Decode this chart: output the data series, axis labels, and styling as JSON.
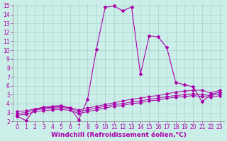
{
  "xlabel": "Windchill (Refroidissement éolien,°C)",
  "xlim": [
    -0.5,
    23.5
  ],
  "ylim": [
    2,
    15.2
  ],
  "xticks": [
    0,
    1,
    2,
    3,
    4,
    5,
    6,
    7,
    8,
    9,
    10,
    11,
    12,
    13,
    14,
    15,
    16,
    17,
    18,
    19,
    20,
    21,
    22,
    23
  ],
  "yticks": [
    2,
    3,
    4,
    5,
    6,
    7,
    8,
    9,
    10,
    11,
    12,
    13,
    14,
    15
  ],
  "bg_color": "#cceee8",
  "grid_color": "#aad8d0",
  "line_color": "#aa00aa",
  "series1_x": [
    0,
    1,
    2,
    3,
    4,
    5,
    6,
    7,
    8,
    9,
    10,
    11,
    12,
    13,
    14,
    15,
    16,
    17,
    18,
    19,
    20,
    21,
    22,
    23
  ],
  "series1_y": [
    2.6,
    2.1,
    3.4,
    3.6,
    3.7,
    3.8,
    3.5,
    2.2,
    4.5,
    10.1,
    14.8,
    14.95,
    14.4,
    14.85,
    7.3,
    11.6,
    11.5,
    10.3,
    6.4,
    6.1,
    5.9,
    4.2,
    5.0,
    5.3
  ],
  "series2_x": [
    0,
    1,
    2,
    3,
    4,
    5,
    6,
    7,
    8,
    9,
    10,
    11,
    12,
    13,
    14,
    15,
    16,
    17,
    18,
    19,
    20,
    21,
    22,
    23
  ],
  "series2_y": [
    3.1,
    3.2,
    3.4,
    3.5,
    3.6,
    3.65,
    3.55,
    3.3,
    3.5,
    3.7,
    3.9,
    4.1,
    4.3,
    4.5,
    4.6,
    4.8,
    4.9,
    5.1,
    5.3,
    5.4,
    5.5,
    5.5,
    5.2,
    5.5
  ],
  "series3_x": [
    0,
    1,
    2,
    3,
    4,
    5,
    6,
    7,
    8,
    9,
    10,
    11,
    12,
    13,
    14,
    15,
    16,
    17,
    18,
    19,
    20,
    21,
    22,
    23
  ],
  "series3_y": [
    2.9,
    3.0,
    3.3,
    3.4,
    3.5,
    3.55,
    3.45,
    3.1,
    3.3,
    3.5,
    3.7,
    3.9,
    4.0,
    4.2,
    4.3,
    4.5,
    4.6,
    4.8,
    4.9,
    5.0,
    5.1,
    5.0,
    4.9,
    5.1
  ],
  "series4_x": [
    0,
    1,
    2,
    3,
    4,
    5,
    6,
    7,
    8,
    9,
    10,
    11,
    12,
    13,
    14,
    15,
    16,
    17,
    18,
    19,
    20,
    21,
    22,
    23
  ],
  "series4_y": [
    2.7,
    2.8,
    3.1,
    3.2,
    3.3,
    3.35,
    3.25,
    2.9,
    3.1,
    3.3,
    3.5,
    3.7,
    3.8,
    4.0,
    4.1,
    4.3,
    4.4,
    4.6,
    4.7,
    4.8,
    4.9,
    4.8,
    4.7,
    4.9
  ],
  "tick_fontsize": 5.5,
  "xlabel_fontsize": 6.5,
  "lw_main": 0.8,
  "lw_flat": 0.7,
  "ms_main": 2.0,
  "ms_flat": 1.8
}
